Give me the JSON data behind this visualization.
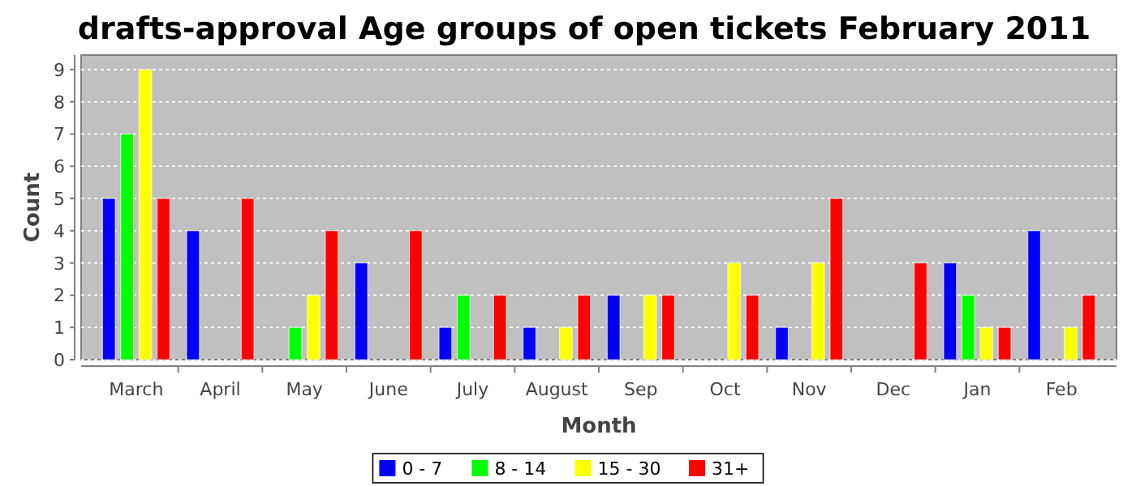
{
  "chart_data": {
    "type": "bar",
    "title": "drafts-approval Age groups of open tickets February 2011",
    "xlabel": "Month",
    "ylabel": "Count",
    "categories": [
      "March",
      "April",
      "May",
      "June",
      "July",
      "August",
      "Sep",
      "Oct",
      "Nov",
      "Dec",
      "Jan",
      "Feb"
    ],
    "series": [
      {
        "name": "0 - 7",
        "color": "#0000ff",
        "values": [
          5,
          4,
          null,
          3,
          1,
          1,
          2,
          null,
          1,
          null,
          3,
          4
        ]
      },
      {
        "name": "8 - 14",
        "color": "#00ff00",
        "values": [
          7,
          null,
          1,
          null,
          2,
          null,
          null,
          null,
          null,
          null,
          2,
          null
        ]
      },
      {
        "name": "15 - 30",
        "color": "#ffff00",
        "values": [
          9,
          null,
          2,
          null,
          null,
          1,
          2,
          3,
          3,
          null,
          1,
          1
        ]
      },
      {
        "name": "31+",
        "color": "#ff0000",
        "values": [
          5,
          5,
          4,
          4,
          2,
          2,
          2,
          2,
          5,
          3,
          1,
          2
        ]
      }
    ],
    "ylim": [
      0,
      9.45
    ],
    "yticks": [
      0,
      1,
      2,
      3,
      4,
      5,
      6,
      7,
      8,
      9
    ],
    "grid": "y",
    "legend": "bottom"
  }
}
